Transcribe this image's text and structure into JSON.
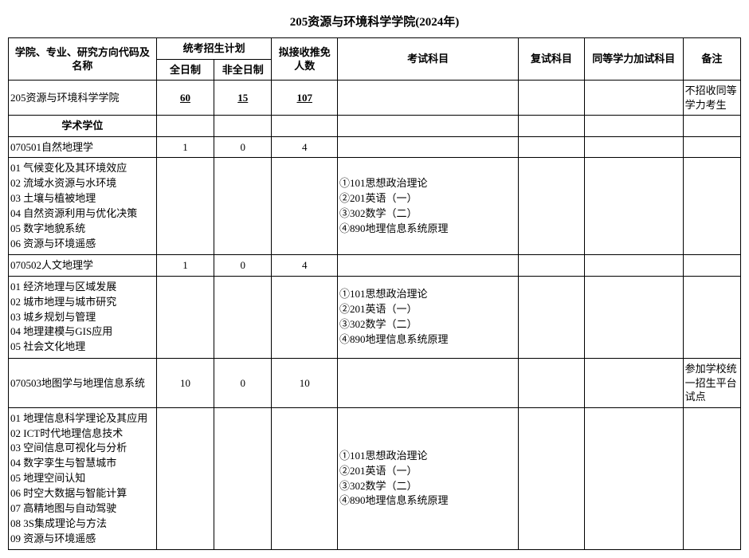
{
  "title": "205资源与环境科学学院(2024年)",
  "headers": {
    "name": "学院、专业、研究方向代码及名称",
    "plan_group": "统考招生计划",
    "fulltime": "全日制",
    "parttime": "非全日制",
    "recommended": "拟接收推免人数",
    "exam": "考试科目",
    "reexam": "复试科目",
    "equiv": "同等学力加试科目",
    "note": "备注"
  },
  "rows": {
    "school": {
      "name": "205资源与环境科学学院",
      "ft": "60",
      "pt": "15",
      "rec": "107",
      "note": "不招收同等学力考生"
    },
    "degree_section": "学术学位",
    "m070501": {
      "name": "070501自然地理学",
      "ft": "1",
      "pt": "0",
      "rec": "4"
    },
    "m070501_dirs": "01 气候变化及其环境效应\n02 流域水资源与水环境\n03 土壤与植被地理\n04 自然资源利用与优化决策\n05 数字地貌系统\n06 资源与环境遥感",
    "m070501_exam": "①101思想政治理论\n②201英语（一）\n③302数学（二）\n④890地理信息系统原理",
    "m070502": {
      "name": "070502人文地理学",
      "ft": "1",
      "pt": "0",
      "rec": "4"
    },
    "m070502_dirs": "01 经济地理与区域发展\n02 城市地理与城市研究\n03 城乡规划与管理\n04 地理建模与GIS应用\n05 社会文化地理",
    "m070502_exam": "①101思想政治理论\n②201英语（一）\n③302数学（二）\n④890地理信息系统原理",
    "m070503": {
      "name": "070503地图学与地理信息系统",
      "ft": "10",
      "pt": "0",
      "rec": "10",
      "note": "参加学校统一招生平台试点"
    },
    "m070503_dirs": "01 地理信息科学理论及其应用\n02 ICT时代地理信息技术\n03 空间信息可视化与分析\n04 数字孪生与智慧城市\n05 地理空间认知\n06 时空大数据与智能计算\n07 高精地图与自动驾驶\n08 3S集成理论与方法\n09 资源与环境遥感",
    "m070503_exam": "①101思想政治理论\n②201英语（一）\n③302数学（二）\n④890地理信息系统原理"
  }
}
